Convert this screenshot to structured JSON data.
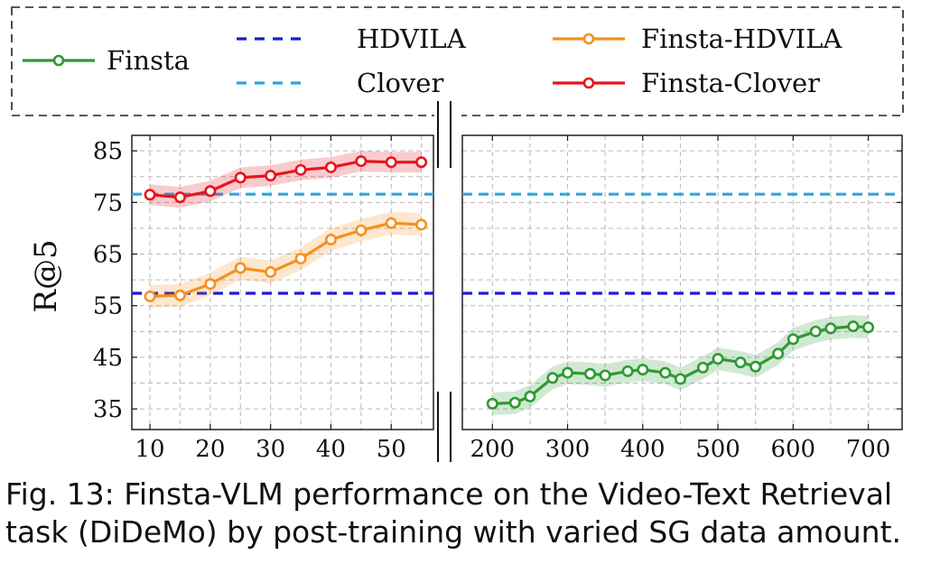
{
  "chart_data": {
    "type": "line",
    "ylabel": "R@5",
    "ylim": [
      31,
      88
    ],
    "yticks": [
      35,
      45,
      55,
      65,
      75,
      85
    ],
    "grid": true,
    "legend_position": "top",
    "left_panel": {
      "xlim": [
        7,
        57
      ],
      "xticks": [
        10,
        20,
        30,
        40,
        50
      ]
    },
    "right_panel": {
      "xlim": [
        160,
        745
      ],
      "xticks": [
        200,
        300,
        400,
        500,
        600,
        700
      ]
    },
    "reference_lines": [
      {
        "name": "HDVILA",
        "value": 57.4,
        "color": "#1a1adb",
        "style": "dashed"
      },
      {
        "name": "Clover",
        "value": 76.6,
        "color": "#2ea3e8",
        "style": "dashed"
      }
    ],
    "series": [
      {
        "name": "Finsta-Clover",
        "panel": "left",
        "color": "#e8141e",
        "x": [
          10,
          15,
          20,
          25,
          30,
          35,
          40,
          45,
          50,
          55
        ],
        "y": [
          76.5,
          76.0,
          77.2,
          79.8,
          80.2,
          81.3,
          81.8,
          83.0,
          82.8,
          82.8
        ],
        "band": 2.0
      },
      {
        "name": "Finsta-HDVILA",
        "panel": "left",
        "color": "#f5901e",
        "x": [
          10,
          15,
          20,
          25,
          30,
          35,
          40,
          45,
          50,
          55
        ],
        "y": [
          56.8,
          57.0,
          59.2,
          62.3,
          61.5,
          64.1,
          67.8,
          69.6,
          71.0,
          70.7
        ],
        "band": 2.2
      },
      {
        "name": "Finsta",
        "panel": "right",
        "color": "#2e9a33",
        "x": [
          200,
          230,
          250,
          280,
          300,
          330,
          350,
          380,
          400,
          430,
          450,
          480,
          500,
          530,
          550,
          580,
          600,
          630,
          650,
          680,
          700
        ],
        "y": [
          36.0,
          36.2,
          37.4,
          41.0,
          42.0,
          41.8,
          41.5,
          42.3,
          42.6,
          42.0,
          40.8,
          43.0,
          44.7,
          44.0,
          43.2,
          45.7,
          48.5,
          50.0,
          50.6,
          51.0,
          50.8
        ],
        "band": 2.2
      }
    ],
    "legend": [
      "Finsta",
      "HDVILA",
      "Clover",
      "Finsta-HDVILA",
      "Finsta-Clover"
    ]
  },
  "caption": "Fig. 13: Finsta-VLM performance on the Video-Text Retrieval task (DiDeMo) by post-training with varied SG data amount."
}
